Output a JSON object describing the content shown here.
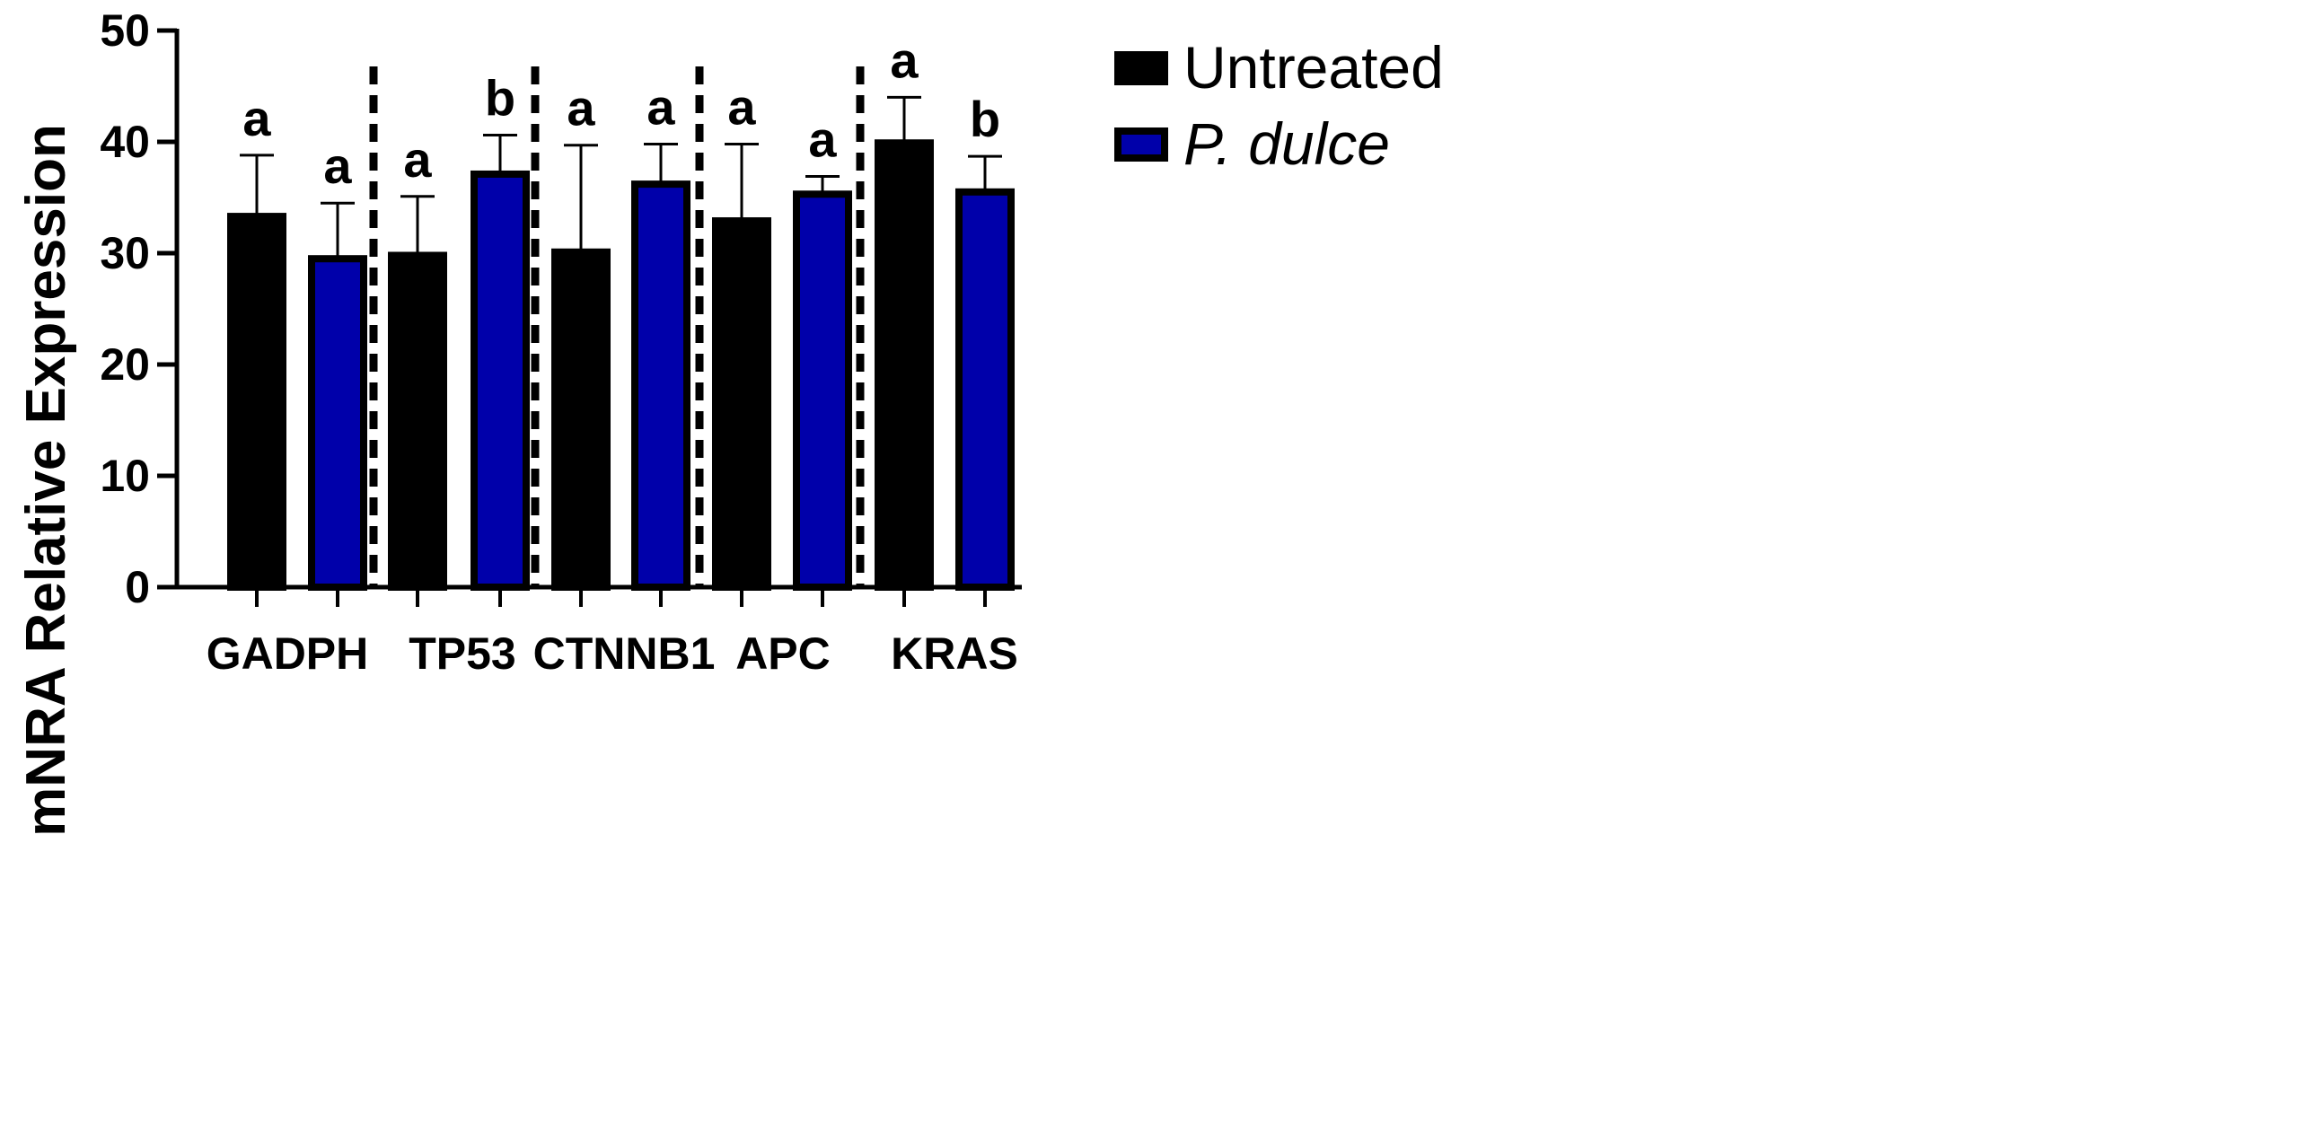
{
  "chart_data": {
    "type": "bar",
    "title": "",
    "xlabel": "",
    "ylabel": "mNRA Relative Expression",
    "ylim": [
      0,
      50
    ],
    "yticks": [
      0,
      10,
      20,
      30,
      40,
      50
    ],
    "categories": [
      "GADPH",
      "TP53",
      "CTNNB1",
      "APC",
      "KRAS"
    ],
    "series": [
      {
        "name": "Untreated",
        "italic": false,
        "fill": "#000000",
        "values": [
          33.3,
          29.8,
          30.1,
          32.9,
          39.9
        ],
        "errors": [
          5.5,
          5.3,
          9.6,
          6.9,
          4.1
        ],
        "significance": [
          "a",
          "a",
          "a",
          "a",
          "a"
        ]
      },
      {
        "name": "P. dulce",
        "italic": true,
        "fill": "#0000aa",
        "values": [
          29.5,
          37.1,
          36.2,
          35.3,
          35.5
        ],
        "errors": [
          5.0,
          3.5,
          3.6,
          1.6,
          3.2
        ],
        "significance": [
          "a",
          "b",
          "a",
          "a",
          "b"
        ]
      }
    ],
    "group_separators": "dashed vertical lines between gene groups",
    "legend_position": "top-right",
    "grid": false
  }
}
